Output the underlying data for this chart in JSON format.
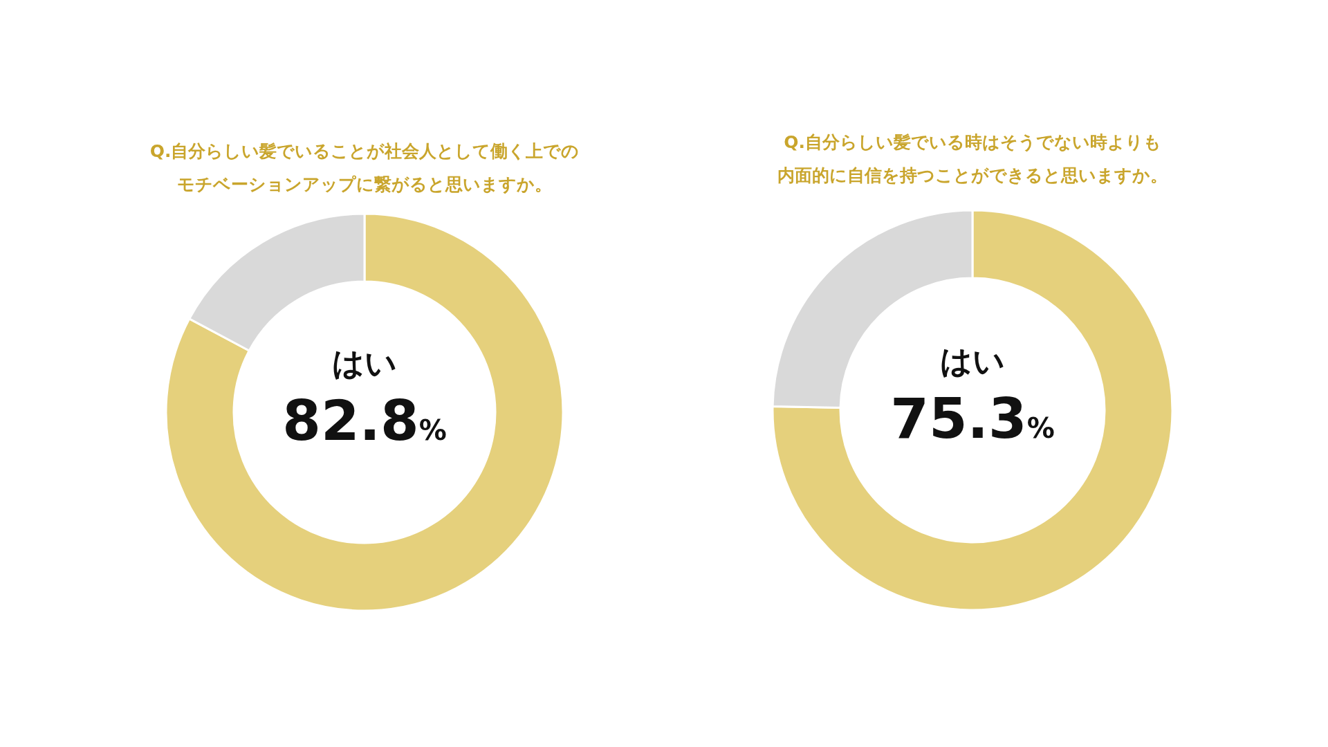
{
  "chart_data": [
    {
      "type": "donut",
      "title": "Q.自分らしい髪でいることが社会人として働く上でのモチベーションアップに繋がると思いますか。",
      "categories": [
        "はい",
        null
      ],
      "values": [
        82.8,
        17.2
      ],
      "colors": [
        "#e5d07c",
        "#d9d9d9"
      ],
      "value_labels": [
        "82.8%",
        null
      ]
    },
    {
      "type": "donut",
      "title": "Q.自分らしい髪でいる時はそうでない時よりも内面的に自信を持つことができると思いますか。",
      "categories": [
        "はい",
        null
      ],
      "values": [
        75.3,
        24.7
      ],
      "colors": [
        "#e5d07c",
        "#d9d9d9"
      ],
      "value_labels": [
        "75.3%",
        null
      ]
    }
  ]
}
